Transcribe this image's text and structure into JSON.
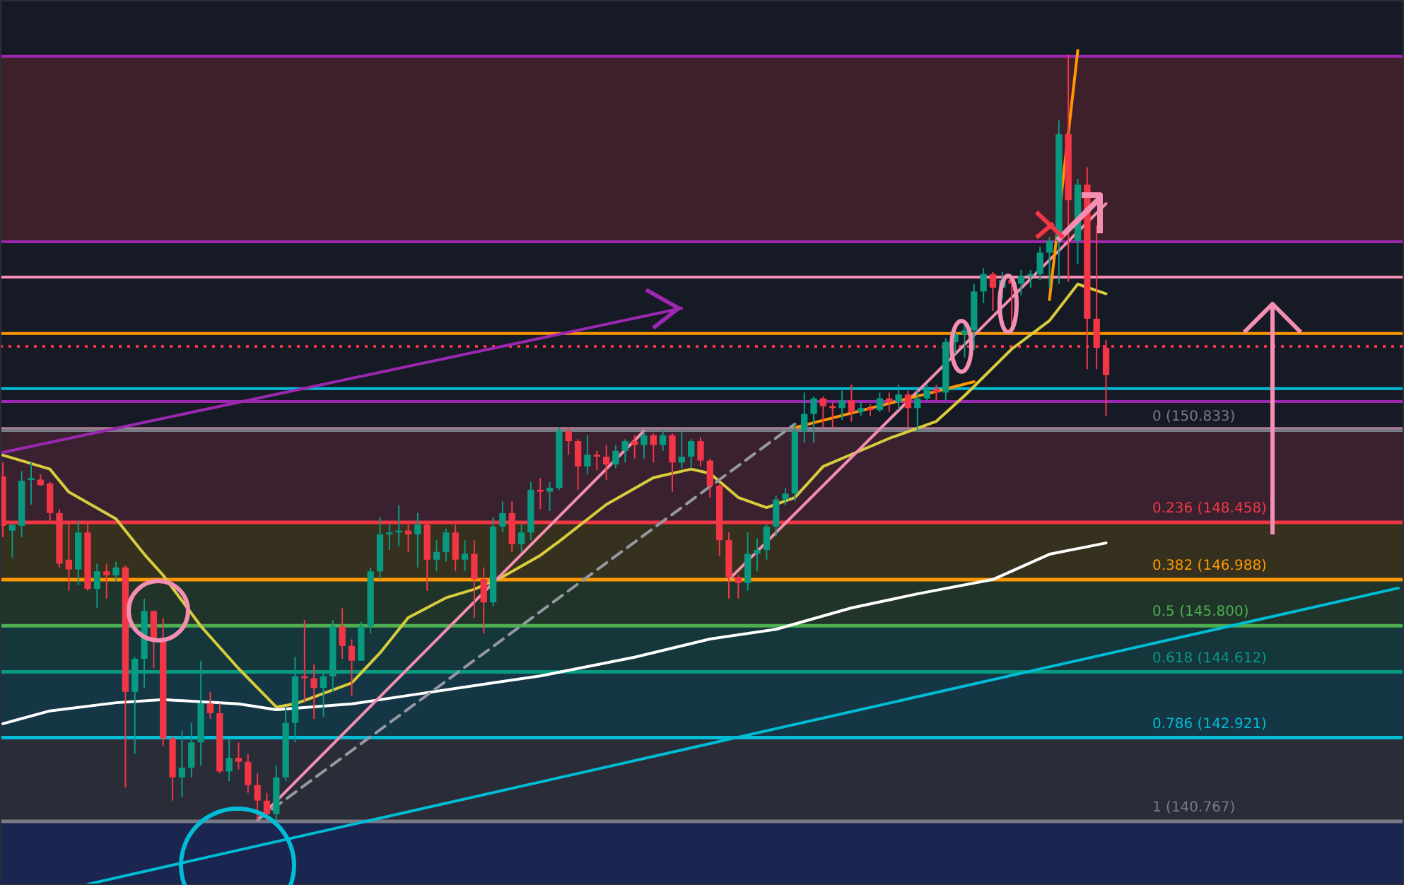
{
  "chart_data": {
    "type": "candlestick",
    "relative": false,
    "categories": [
      null,
      null,
      null,
      null,
      null,
      null,
      null,
      null,
      null,
      null,
      null,
      null,
      null,
      null,
      null,
      null,
      null,
      null,
      null,
      null,
      null,
      null,
      null,
      null,
      null,
      null,
      null,
      null,
      null,
      null,
      null,
      null,
      null,
      null,
      null,
      null,
      null,
      null,
      null,
      null,
      null,
      null,
      null,
      null,
      null,
      null,
      null,
      null,
      null,
      null,
      null,
      null,
      null,
      null,
      null,
      null,
      null,
      null,
      null,
      null,
      null,
      null,
      null,
      null,
      null,
      null,
      null,
      null,
      null,
      null,
      null,
      null,
      null,
      null,
      null,
      null,
      null,
      null,
      null,
      null,
      null,
      null,
      null,
      null,
      null,
      null,
      null,
      null,
      null,
      null,
      null,
      null,
      null,
      null,
      null,
      null,
      null,
      null,
      null,
      null,
      null,
      null,
      null,
      null,
      null,
      null,
      null,
      null,
      null,
      null,
      null,
      null,
      null,
      null,
      null,
      null,
      null,
      null,
      null,
      null,
      null,
      null,
      null,
      null,
      null,
      null,
      null,
      null,
      null,
      null,
      null,
      null,
      null,
      null,
      null,
      null,
      null,
      null,
      null,
      null,
      null,
      null,
      null,
      null,
      null,
      null,
      null,
      null,
      null
    ],
    "ylim": [
      139.13,
      161.9
    ],
    "tick_labels": false,
    "ohlc": [
      [
        149.64,
        150.0,
        148.08,
        148.37
      ],
      [
        148.25,
        148.4,
        147.55,
        148.4
      ],
      [
        148.37,
        149.78,
        148.08,
        149.53
      ],
      [
        149.55,
        150.0,
        148.92,
        149.6
      ],
      [
        149.56,
        149.7,
        149.4,
        149.42
      ],
      [
        149.46,
        149.5,
        148.5,
        148.7
      ],
      [
        148.7,
        148.8,
        147.3,
        147.4
      ],
      [
        147.5,
        148.5,
        146.7,
        147.25
      ],
      [
        147.25,
        148.5,
        146.85,
        148.2
      ],
      [
        148.2,
        148.5,
        146.7,
        146.75
      ],
      [
        146.75,
        147.4,
        146.25,
        147.2
      ],
      [
        147.2,
        147.4,
        146.5,
        147.1
      ],
      [
        147.1,
        147.45,
        146.95,
        147.3
      ],
      [
        147.3,
        147.35,
        141.64,
        144.1
      ],
      [
        144.1,
        145.0,
        142.5,
        144.95
      ],
      [
        144.95,
        146.5,
        144.2,
        146.18
      ],
      [
        146.18,
        146.2,
        144.7,
        145.45
      ],
      [
        145.45,
        146.0,
        142.7,
        142.9
      ],
      [
        142.9,
        142.95,
        141.3,
        141.9
      ],
      [
        141.9,
        143.1,
        141.4,
        142.15
      ],
      [
        142.15,
        143.3,
        141.9,
        142.8
      ],
      [
        142.8,
        144.9,
        142.2,
        143.8
      ],
      [
        143.8,
        144.1,
        143.4,
        143.55
      ],
      [
        143.55,
        143.8,
        142.0,
        142.05
      ],
      [
        142.05,
        142.9,
        141.8,
        142.4
      ],
      [
        142.4,
        142.8,
        142.1,
        142.3
      ],
      [
        142.3,
        142.5,
        141.5,
        141.7
      ],
      [
        141.7,
        142.0,
        140.8,
        141.3
      ],
      [
        141.3,
        141.5,
        140.767,
        140.95
      ],
      [
        140.95,
        142.2,
        140.8,
        141.9
      ],
      [
        141.9,
        143.7,
        141.8,
        143.3
      ],
      [
        143.3,
        145.0,
        142.8,
        144.5
      ],
      [
        144.5,
        145.95,
        143.85,
        144.45
      ],
      [
        144.45,
        144.8,
        143.4,
        144.2
      ],
      [
        144.2,
        144.6,
        143.45,
        144.5
      ],
      [
        144.5,
        145.95,
        144.1,
        145.78
      ],
      [
        145.78,
        146.25,
        144.95,
        145.28
      ],
      [
        145.28,
        145.45,
        144.0,
        144.9
      ],
      [
        144.9,
        145.9,
        144.9,
        145.78
      ],
      [
        145.78,
        147.3,
        145.6,
        147.2
      ],
      [
        147.2,
        148.6,
        147.0,
        148.15
      ],
      [
        148.15,
        148.4,
        147.75,
        148.2
      ],
      [
        148.2,
        148.9,
        147.85,
        148.25
      ],
      [
        148.25,
        148.4,
        147.7,
        148.15
      ],
      [
        148.15,
        148.7,
        147.3,
        148.4
      ],
      [
        148.4,
        148.45,
        146.7,
        147.5
      ],
      [
        147.5,
        148.0,
        147.2,
        147.7
      ],
      [
        147.7,
        148.3,
        147.45,
        148.2
      ],
      [
        148.2,
        148.4,
        147.2,
        147.5
      ],
      [
        147.5,
        148.0,
        147.2,
        147.65
      ],
      [
        147.65,
        148.0,
        146.0,
        147.0
      ],
      [
        147.0,
        147.3,
        145.6,
        146.4
      ],
      [
        146.4,
        148.6,
        146.3,
        148.35
      ],
      [
        148.35,
        149.0,
        148.2,
        148.7
      ],
      [
        148.7,
        149.0,
        147.7,
        147.9
      ],
      [
        147.9,
        148.4,
        147.7,
        148.2
      ],
      [
        148.2,
        149.5,
        148.0,
        149.3
      ],
      [
        149.3,
        149.6,
        148.8,
        149.25
      ],
      [
        149.25,
        149.5,
        148.75,
        149.35
      ],
      [
        149.35,
        150.9,
        149.3,
        150.8
      ],
      [
        150.8,
        150.9,
        150.2,
        150.55
      ],
      [
        150.55,
        150.6,
        149.3,
        149.9
      ],
      [
        149.9,
        150.7,
        149.7,
        150.2
      ],
      [
        150.2,
        150.3,
        149.8,
        150.15
      ],
      [
        150.15,
        150.45,
        149.55,
        149.95
      ],
      [
        149.95,
        150.45,
        149.85,
        150.3
      ],
      [
        150.3,
        150.6,
        150.0,
        150.55
      ],
      [
        150.55,
        150.7,
        150.1,
        150.45
      ],
      [
        150.45,
        150.8,
        150.1,
        150.7
      ],
      [
        150.7,
        150.75,
        150.0,
        150.45
      ],
      [
        150.45,
        150.833,
        150.3,
        150.7
      ],
      [
        150.7,
        150.75,
        149.25,
        150.0
      ],
      [
        150.0,
        150.8,
        149.85,
        150.15
      ],
      [
        150.15,
        150.6,
        149.85,
        150.55
      ],
      [
        150.55,
        150.65,
        149.9,
        150.05
      ],
      [
        150.05,
        150.1,
        149.1,
        149.4
      ],
      [
        149.4,
        149.45,
        147.6,
        148.0
      ],
      [
        148.0,
        148.2,
        146.5,
        147.05
      ],
      [
        147.05,
        147.1,
        146.5,
        146.9
      ],
      [
        146.9,
        148.2,
        146.7,
        147.65
      ],
      [
        147.65,
        148.05,
        147.2,
        147.75
      ],
      [
        147.75,
        148.4,
        147.5,
        148.35
      ],
      [
        148.35,
        149.15,
        148.1,
        149.05
      ],
      [
        149.05,
        149.35,
        148.9,
        149.2
      ],
      [
        149.2,
        151.0,
        149.0,
        150.8
      ],
      [
        150.8,
        151.8,
        150.5,
        151.25
      ],
      [
        151.25,
        151.7,
        150.5,
        151.65
      ],
      [
        151.65,
        151.7,
        150.9,
        151.45
      ],
      [
        151.45,
        151.55,
        150.9,
        151.4
      ],
      [
        151.4,
        151.85,
        151.1,
        151.6
      ],
      [
        151.6,
        152.0,
        151.05,
        151.3
      ],
      [
        151.3,
        151.55,
        151.2,
        151.4
      ],
      [
        151.4,
        151.5,
        151.2,
        151.35
      ],
      [
        151.35,
        151.8,
        151.3,
        151.65
      ],
      [
        151.65,
        151.8,
        151.3,
        151.55
      ],
      [
        151.55,
        152.0,
        151.35,
        151.75
      ],
      [
        151.75,
        151.85,
        150.9,
        151.4
      ],
      [
        151.4,
        151.85,
        150.8,
        151.65
      ],
      [
        151.65,
        152.0,
        151.6,
        151.9
      ],
      [
        151.9,
        152.0,
        151.6,
        151.8
      ],
      [
        151.8,
        153.2,
        151.6,
        153.1
      ],
      [
        153.1,
        153.35,
        152.8,
        153.3
      ],
      [
        153.3,
        153.55,
        152.7,
        153.4
      ],
      [
        153.4,
        154.6,
        152.9,
        154.4
      ],
      [
        154.4,
        155.0,
        154.1,
        154.85
      ],
      [
        154.85,
        154.9,
        153.9,
        154.5
      ],
      [
        154.5,
        154.9,
        154.2,
        154.7
      ],
      [
        154.7,
        154.75,
        153.5,
        154.6
      ],
      [
        154.6,
        154.95,
        154.3,
        154.8
      ],
      [
        154.8,
        154.95,
        154.5,
        154.85
      ],
      [
        154.85,
        155.55,
        154.7,
        155.4
      ],
      [
        155.4,
        155.8,
        154.5,
        155.7
      ],
      [
        155.7,
        158.8,
        154.6,
        158.45
      ],
      [
        158.45,
        160.5,
        154.65,
        156.75
      ],
      [
        155.7,
        157.3,
        155.1,
        157.15
      ],
      [
        157.15,
        157.6,
        152.4,
        153.7
      ],
      [
        153.7,
        156.1,
        152.4,
        152.95
      ],
      [
        152.95,
        153.15,
        151.2,
        152.25
      ],
      null,
      null,
      null,
      null,
      null,
      null,
      null,
      null,
      null,
      null,
      null,
      null,
      null,
      null,
      null,
      null,
      null,
      null,
      null,
      null,
      null,
      null,
      null,
      null,
      null,
      null,
      null,
      null,
      null,
      null,
      null
    ],
    "colors": [
      "#f23645",
      "#089981",
      "#089981",
      "#089981",
      "#f23645",
      "#f23645",
      "#f23645",
      "#f23645",
      "#089981",
      "#f23645",
      "#089981",
      "#f23645",
      "#089981",
      "#f23645",
      "#089981",
      "#089981",
      "#f23645",
      "#f23645",
      "#f23645",
      "#089981",
      "#089981",
      "#089981",
      "#f23645",
      "#f23645",
      "#089981",
      "#f23645",
      "#f23645",
      "#f23645",
      "#f23645",
      "#089981",
      "#089981",
      "#089981",
      "#f23645",
      "#f23645",
      "#089981",
      "#089981",
      "#f23645",
      "#f23645",
      "#089981",
      "#089981",
      "#089981",
      "#089981",
      "#089981",
      "#f23645",
      "#089981",
      "#f23645",
      "#089981",
      "#089981",
      "#f23645",
      "#089981",
      "#f23645",
      "#f23645",
      "#089981",
      "#089981",
      "#f23645",
      "#089981",
      "#089981",
      "#f23645",
      "#089981",
      "#089981",
      "#f23645",
      "#f23645",
      "#089981",
      "#f23645",
      "#f23645",
      "#089981",
      "#089981",
      "#f23645",
      "#089981",
      "#f23645",
      "#089981",
      "#f23645",
      "#089981",
      "#089981",
      "#f23645",
      "#f23645",
      "#f23645",
      "#f23645",
      "#f23645",
      "#089981",
      "#089981",
      "#089981",
      "#089981",
      "#089981",
      "#089981",
      "#089981",
      "#089981",
      "#f23645",
      "#f23645",
      "#089981",
      "#f23645",
      "#089981",
      "#f23645",
      "#089981",
      "#f23645",
      "#089981",
      "#f23645",
      "#089981",
      "#089981",
      "#f23645",
      "#089981",
      "#089981",
      "#089981",
      "#089981",
      "#089981",
      "#f23645",
      "#089981",
      "#f23645",
      "#089981",
      "#089981",
      "#089981",
      "#089981",
      "#089981",
      "#f23645",
      "#089981",
      "#f23645",
      "#f23645",
      "#f23645",
      null,
      null,
      null,
      null,
      null,
      null,
      null,
      null,
      null,
      null,
      null,
      null,
      null,
      null,
      null,
      null,
      null,
      null,
      null,
      null,
      null,
      null,
      null,
      null,
      null,
      null,
      null,
      null,
      null,
      null,
      null
    ],
    "series": [
      {
        "type": "line",
        "color": "#d9cc3c",
        "values": [
          150.19,
          null,
          null,
          null,
          null,
          149.83,
          null,
          149.24,
          null,
          null,
          null,
          null,
          148.55,
          null,
          null,
          147.64,
          null,
          147.1,
          null,
          null,
          null,
          145.79,
          null,
          null,
          null,
          144.7,
          null,
          null,
          null,
          143.71,
          null,
          143.79,
          null,
          null,
          null,
          null,
          null,
          144.33,
          null,
          null,
          145.1,
          null,
          null,
          146.01,
          null,
          null,
          null,
          146.52,
          null,
          null,
          146.74,
          null,
          null,
          147.06,
          null,
          null,
          null,
          147.61,
          null,
          147.97,
          null,
          null,
          null,
          null,
          148.92,
          null,
          null,
          null,
          null,
          149.61,
          null,
          null,
          null,
          149.83,
          null,
          149.72,
          null,
          null,
          149.1,
          null,
          null,
          148.84,
          null,
          null,
          149.1,
          null,
          null,
          149.9,
          null,
          null,
          null,
          null,
          null,
          null,
          150.62,
          null,
          null,
          null,
          null,
          151.06,
          null,
          null,
          151.72,
          null,
          null,
          null,
          null,
          152.92,
          null,
          null,
          null,
          153.65,
          null,
          null,
          154.59,
          null,
          null,
          154.34,
          null,
          null,
          null,
          null,
          null,
          null,
          null,
          null,
          null,
          null,
          null,
          null,
          null,
          null,
          null,
          null,
          null,
          null,
          null,
          null,
          null,
          null,
          null,
          null,
          null,
          null,
          null,
          null,
          null,
          null,
          null
        ]
      },
      {
        "type": "line",
        "color": "#ffffff",
        "values": [
          143.28,
          null,
          null,
          null,
          null,
          143.61,
          null,
          null,
          null,
          null,
          null,
          null,
          143.82,
          null,
          null,
          null,
          null,
          143.9,
          null,
          null,
          null,
          null,
          null,
          null,
          null,
          143.79,
          null,
          null,
          null,
          143.64,
          null,
          null,
          null,
          null,
          null,
          null,
          null,
          143.79,
          null,
          null,
          null,
          null,
          143.97,
          null,
          null,
          null,
          null,
          null,
          null,
          null,
          null,
          null,
          144.33,
          null,
          null,
          null,
          null,
          144.51,
          null,
          null,
          null,
          null,
          null,
          null,
          null,
          null,
          null,
          144.99,
          null,
          null,
          null,
          null,
          null,
          null,
          null,
          145.46,
          null,
          null,
          null,
          null,
          null,
          null,
          145.71,
          null,
          null,
          null,
          null,
          null,
          null,
          null,
          146.26,
          null,
          null,
          null,
          null,
          null,
          null,
          146.62,
          null,
          null,
          null,
          null,
          null,
          null,
          null,
          146.99,
          null,
          null,
          null,
          null,
          null,
          147.64,
          null,
          null,
          null,
          null,
          null,
          147.93,
          null,
          null,
          null,
          null,
          null,
          null,
          null,
          null,
          null,
          null,
          null,
          null,
          null,
          null,
          null,
          null,
          null,
          null,
          null,
          null,
          null,
          null,
          null,
          null,
          null,
          null,
          null,
          null,
          null,
          null,
          null
        ]
      },
      {
        "type": "line",
        "color": "#00bcd4",
        "values": [
          null,
          null,
          null,
          null,
          null,
          null,
          null,
          null,
          null,
          139.15,
          null,
          null,
          null,
          null,
          null,
          null,
          null,
          null,
          null,
          null,
          null,
          null,
          null,
          null,
          null,
          null,
          null,
          null,
          null,
          null,
          null,
          null,
          null,
          null,
          null,
          null,
          null,
          null,
          null,
          null,
          null,
          null,
          null,
          null,
          null,
          null,
          null,
          null,
          null,
          null,
          null,
          null,
          null,
          null,
          null,
          null,
          null,
          null,
          null,
          null,
          null,
          null,
          null,
          null,
          null,
          null,
          null,
          null,
          null,
          null,
          null,
          null,
          null,
          null,
          null,
          null,
          null,
          null,
          null,
          null,
          null,
          null,
          null,
          null,
          null,
          null,
          null,
          null,
          null,
          null,
          null,
          null,
          null,
          null,
          null,
          null,
          null,
          null,
          null,
          null,
          null,
          null,
          null,
          null,
          null,
          null,
          null,
          null,
          null,
          null,
          null,
          null,
          null,
          null,
          null,
          null,
          null,
          null,
          null,
          null,
          null,
          null,
          null,
          null,
          null,
          null,
          null,
          null,
          null,
          null,
          null,
          null,
          null,
          null,
          null,
          null,
          null,
          null,
          null,
          null,
          null,
          null,
          null,
          null,
          null,
          null,
          null,
          null,
          146.77
        ]
      },
      {
        "type": "line",
        "color": "#9c27b0",
        "values": [
          150.26,
          null,
          null,
          null,
          null,
          null,
          null,
          null,
          null,
          null,
          null,
          null,
          null,
          null,
          null,
          null,
          null,
          null,
          null,
          null,
          null,
          null,
          null,
          null,
          null,
          null,
          null,
          null,
          null,
          null,
          null,
          null,
          null,
          null,
          null,
          null,
          null,
          null,
          null,
          null,
          null,
          null,
          null,
          null,
          null,
          null,
          null,
          null,
          null,
          null,
          null,
          null,
          null,
          null,
          null,
          null,
          null,
          null,
          null,
          null,
          null,
          null,
          null,
          null,
          null,
          null,
          null,
          null,
          null,
          null,
          null,
          null,
          153.97,
          null,
          null,
          null,
          null,
          null,
          null,
          null,
          null,
          null,
          null,
          null,
          null,
          null,
          null,
          null,
          null,
          null,
          null,
          null,
          null,
          null,
          null,
          null,
          null,
          null,
          null,
          null,
          null,
          null,
          null,
          null,
          null,
          null,
          null,
          null,
          null,
          null,
          null,
          null,
          null,
          null,
          null,
          null,
          null,
          null,
          null,
          null,
          null,
          null,
          null,
          null,
          null,
          null,
          null,
          null,
          null,
          null,
          null,
          null,
          null,
          null,
          null,
          null,
          null,
          null,
          null,
          null,
          null,
          null,
          null,
          null,
          null,
          null,
          null,
          null,
          null
        ]
      },
      {
        "type": "line",
        "color": "#f48fb1",
        "values": [
          null,
          null,
          null,
          null,
          null,
          null,
          null,
          null,
          null,
          null,
          null,
          null,
          null,
          null,
          null,
          null,
          null,
          null,
          null,
          null,
          null,
          null,
          null,
          null,
          null,
          null,
          null,
          140.8,
          null,
          null,
          null,
          null,
          null,
          null,
          null,
          null,
          null,
          null,
          null,
          null,
          null,
          null,
          null,
          null,
          null,
          null,
          null,
          null,
          null,
          null,
          null,
          null,
          null,
          null,
          null,
          null,
          null,
          null,
          null,
          null,
          null,
          null,
          null,
          null,
          null,
          null,
          null,
          null,
          150.81,
          null,
          null,
          null,
          null,
          null,
          null,
          null,
          null,
          null,
          null,
          null,
          null,
          null,
          null,
          null,
          null,
          null,
          null,
          null,
          null,
          null,
          null,
          null,
          null,
          null,
          null,
          null,
          null,
          null,
          null,
          null,
          null,
          null,
          null,
          null,
          null,
          null,
          null,
          null,
          null,
          null,
          null,
          null,
          null,
          null,
          null,
          null,
          null,
          null,
          null,
          null,
          null,
          null,
          null,
          null,
          null,
          null,
          null,
          null,
          null,
          null,
          null,
          null,
          null,
          null,
          null,
          null,
          null,
          null,
          null,
          null,
          null,
          null,
          null,
          null,
          null,
          null,
          null,
          null,
          null
        ]
      },
      {
        "type": "line",
        "color": "#f48fb1",
        "values": [
          null,
          null,
          null,
          null,
          null,
          null,
          null,
          null,
          null,
          null,
          null,
          null,
          null,
          null,
          null,
          null,
          null,
          null,
          null,
          null,
          null,
          null,
          null,
          null,
          null,
          null,
          null,
          null,
          null,
          null,
          null,
          null,
          null,
          null,
          null,
          null,
          null,
          null,
          null,
          null,
          null,
          null,
          null,
          null,
          null,
          null,
          null,
          null,
          null,
          null,
          null,
          null,
          null,
          null,
          null,
          null,
          null,
          null,
          null,
          null,
          null,
          null,
          null,
          null,
          null,
          null,
          null,
          null,
          null,
          null,
          null,
          null,
          null,
          null,
          null,
          null,
          null,
          146.99,
          null,
          null,
          null,
          null,
          null,
          null,
          null,
          null,
          null,
          null,
          null,
          null,
          null,
          null,
          null,
          null,
          null,
          null,
          null,
          null,
          null,
          null,
          null,
          null,
          null,
          null,
          null,
          null,
          null,
          null,
          null,
          null,
          null,
          null,
          null,
          null,
          null,
          null,
          null,
          156.66,
          null,
          null,
          null,
          null,
          null,
          null,
          null,
          null,
          null,
          null,
          null,
          null,
          null,
          null,
          null,
          null,
          null,
          null,
          null,
          null,
          null,
          null,
          null,
          null,
          null,
          null,
          null,
          null,
          null,
          null,
          null
        ]
      },
      {
        "type": "line",
        "color": "#9598a1",
        "line_style": "dashed",
        "values": [
          null,
          null,
          null,
          null,
          null,
          null,
          null,
          null,
          null,
          null,
          null,
          null,
          null,
          null,
          null,
          null,
          null,
          null,
          null,
          null,
          null,
          null,
          null,
          null,
          null,
          null,
          null,
          140.8,
          null,
          null,
          null,
          null,
          null,
          null,
          null,
          null,
          null,
          null,
          null,
          null,
          null,
          null,
          null,
          null,
          null,
          null,
          null,
          null,
          null,
          null,
          null,
          null,
          null,
          null,
          null,
          null,
          null,
          null,
          null,
          null,
          null,
          null,
          null,
          null,
          null,
          null,
          null,
          null,
          null,
          null,
          null,
          null,
          null,
          null,
          null,
          null,
          null,
          null,
          null,
          null,
          null,
          null,
          null,
          null,
          150.99,
          null,
          null,
          null,
          null,
          null,
          null,
          null,
          null,
          null,
          null,
          null,
          null,
          null,
          null,
          null,
          null,
          null,
          null,
          null,
          null,
          null,
          null,
          null,
          null,
          null,
          null,
          null,
          null,
          null,
          null,
          null,
          null,
          null,
          null,
          null,
          null,
          null,
          null,
          null,
          null,
          null,
          null,
          null,
          null,
          null,
          null,
          null,
          null,
          null,
          null,
          null,
          null,
          null,
          null,
          null,
          null,
          null,
          null,
          null,
          null,
          null,
          null,
          null,
          null
        ]
      },
      {
        "type": "line",
        "color": "#ff9800",
        "values": [
          null,
          null,
          null,
          null,
          null,
          null,
          null,
          null,
          null,
          null,
          null,
          null,
          null,
          null,
          null,
          null,
          null,
          null,
          null,
          null,
          null,
          null,
          null,
          null,
          null,
          null,
          null,
          null,
          null,
          null,
          null,
          null,
          null,
          null,
          null,
          null,
          null,
          null,
          null,
          null,
          null,
          null,
          null,
          null,
          null,
          null,
          null,
          null,
          null,
          null,
          null,
          null,
          null,
          null,
          null,
          null,
          null,
          null,
          null,
          null,
          null,
          null,
          null,
          null,
          null,
          null,
          null,
          null,
          null,
          null,
          null,
          null,
          null,
          null,
          null,
          null,
          null,
          null,
          null,
          null,
          null,
          null,
          null,
          null,
          null,
          null,
          null,
          null,
          null,
          null,
          null,
          null,
          null,
          null,
          null,
          null,
          null,
          null,
          null,
          null,
          null,
          null,
          null,
          null,
          null,
          null,
          null,
          null,
          null,
          null,
          null,
          154.19,
          null,
          null,
          160.6,
          null,
          null,
          null,
          null,
          null,
          null,
          null,
          null,
          null,
          null,
          null,
          null,
          null,
          null,
          null,
          null,
          null,
          null,
          null,
          null,
          null,
          null,
          null,
          null,
          null,
          null,
          null,
          null,
          null,
          null,
          null,
          null,
          null,
          null
        ]
      },
      {
        "type": "line",
        "color": "#ff9800",
        "values": [
          null,
          null,
          null,
          null,
          null,
          null,
          null,
          null,
          null,
          null,
          null,
          null,
          null,
          null,
          null,
          null,
          null,
          null,
          null,
          null,
          null,
          null,
          null,
          null,
          null,
          null,
          null,
          null,
          null,
          null,
          null,
          null,
          null,
          null,
          null,
          null,
          null,
          null,
          null,
          null,
          null,
          null,
          null,
          null,
          null,
          null,
          null,
          null,
          null,
          null,
          null,
          null,
          null,
          null,
          null,
          null,
          null,
          null,
          null,
          null,
          null,
          null,
          null,
          null,
          null,
          null,
          null,
          null,
          null,
          null,
          null,
          null,
          null,
          null,
          null,
          null,
          null,
          null,
          null,
          null,
          null,
          null,
          null,
          null,
          150.9,
          null,
          null,
          null,
          null,
          null,
          null,
          null,
          null,
          null,
          null,
          null,
          null,
          null,
          null,
          null,
          null,
          null,
          null,
          152.08,
          null,
          null,
          null,
          null,
          null,
          null,
          null,
          null,
          null,
          null,
          null,
          null,
          null,
          null,
          null,
          null,
          null,
          null,
          null,
          null,
          null,
          null,
          null,
          null,
          null,
          null,
          null,
          null,
          null,
          null,
          null,
          null,
          null,
          null,
          null,
          null,
          null,
          null,
          null,
          null,
          null,
          null,
          null,
          null,
          null
        ]
      }
    ],
    "bands": [
      {
        "axis": "y",
        "from": 155.68,
        "to": 160.45,
        "color": "#3d2029"
      },
      {
        "axis": "y",
        "from": 148.458,
        "to": 150.833,
        "color": "#3a2130"
      },
      {
        "axis": "y",
        "from": 146.988,
        "to": 148.458,
        "color": "#36301f"
      },
      {
        "axis": "y",
        "from": 145.8,
        "to": 146.988,
        "color": "#20342a"
      },
      {
        "axis": "y",
        "from": 144.612,
        "to": 145.8,
        "color": "#15363a"
      },
      {
        "axis": "y",
        "from": 142.921,
        "to": 144.612,
        "color": "#143645"
      },
      {
        "axis": "y",
        "from": 140.767,
        "to": 142.921,
        "color": "#2a2c38"
      },
      {
        "axis": "y",
        "from": 139.13,
        "to": 140.767,
        "color": "#1a2550"
      }
    ],
    "ref_lines": [
      {
        "axis": "y",
        "value": 160.45,
        "color": "#9c27b0"
      },
      {
        "axis": "y",
        "value": 155.68,
        "color": "#9c27b0"
      },
      {
        "axis": "y",
        "value": 154.77,
        "color": "#f48fb1"
      },
      {
        "axis": "y",
        "value": 153.32,
        "color": "#ff9800"
      },
      {
        "axis": "y",
        "value": 152.99,
        "color": "#f23645",
        "line_style": "dotted"
      },
      {
        "axis": "y",
        "value": 151.9,
        "color": "#00bcd4"
      },
      {
        "axis": "y",
        "value": 151.57,
        "color": "#9c27b0"
      },
      {
        "axis": "y",
        "value": 150.87,
        "color": "#f48fb1"
      },
      {
        "axis": "y",
        "value": 150.833,
        "label": "0 (150.833)",
        "color": "#787b86"
      },
      {
        "axis": "y",
        "value": 148.458,
        "label": "0.236 (148.458)",
        "color": "#f23645"
      },
      {
        "axis": "y",
        "value": 146.988,
        "label": "0.382 (146.988)",
        "color": "#ff9800"
      },
      {
        "axis": "y",
        "value": 145.8,
        "label": "0.5 (145.800)",
        "color": "#4caf50"
      },
      {
        "axis": "y",
        "value": 144.612,
        "label": "0.618 (144.612)",
        "color": "#089981"
      },
      {
        "axis": "y",
        "value": 142.921,
        "label": "0.786 (142.921)",
        "color": "#00bcd4"
      },
      {
        "axis": "y",
        "value": 140.767,
        "label": "1 (140.767)",
        "color": "#787b86"
      }
    ]
  }
}
